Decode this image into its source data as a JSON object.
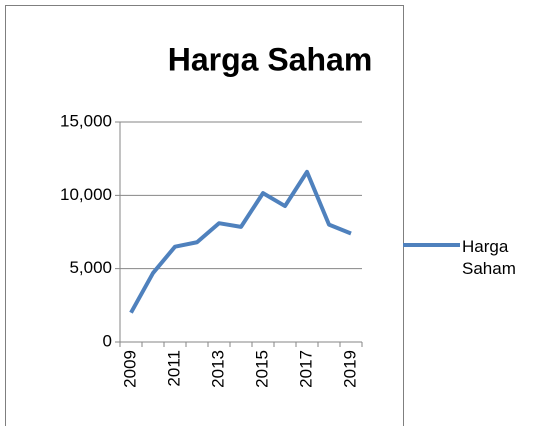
{
  "chart_data": {
    "type": "line",
    "title": "Harga Saham",
    "categories": [
      "2009",
      null,
      "2011",
      null,
      "2013",
      null,
      "2015",
      null,
      "2017",
      null,
      "2019"
    ],
    "series": [
      {
        "name": "Harga Saham",
        "color": "#4f81bd",
        "values": [
          2000,
          4700,
          6500,
          6800,
          8100,
          7850,
          10150,
          9270,
          11600,
          8000,
          7400
        ]
      }
    ],
    "ylim": [
      0,
      15000
    ],
    "yticks": [
      0,
      {
        "value": 5000,
        "label": "5,000"
      },
      {
        "value": 10000,
        "label": "10,000"
      },
      {
        "value": 15000,
        "label": "15,000"
      }
    ],
    "grid": true,
    "legend": "right"
  }
}
